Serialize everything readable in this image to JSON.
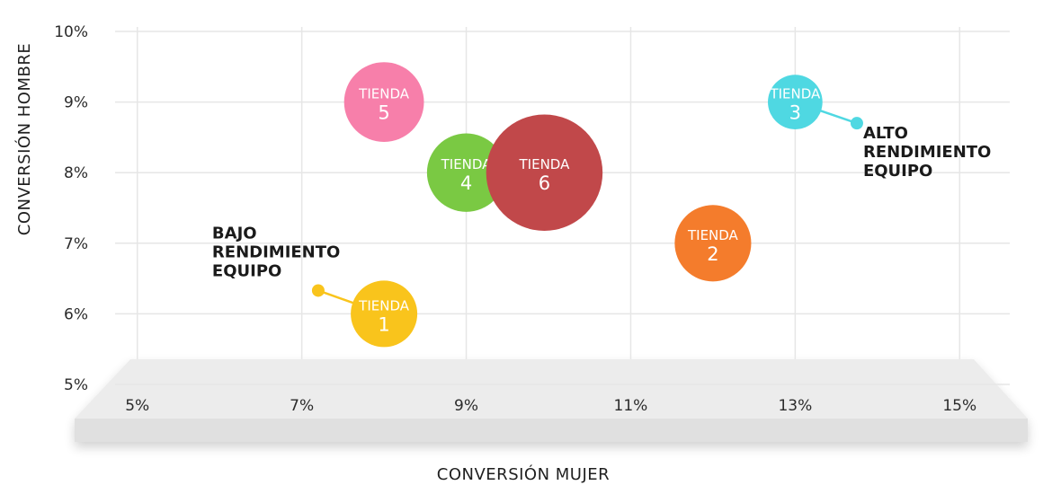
{
  "chart_data": {
    "type": "scatter",
    "xlabel": "CONVERSIÓN MUJER",
    "ylabel": "CONVERSIÓN HOMBRE",
    "xlim": [
      4.5,
      15.5
    ],
    "ylim": [
      5,
      10
    ],
    "x_ticks": [
      "5%",
      "7%",
      "9%",
      "11%",
      "13%",
      "15%"
    ],
    "y_ticks": [
      "5%",
      "6%",
      "7%",
      "8%",
      "9%",
      "10%"
    ],
    "grid": true,
    "points": [
      {
        "word": "TIENDA",
        "num": "1",
        "x": 8.0,
        "y": 6.0,
        "color": "#f9c41c",
        "size": 1.0
      },
      {
        "word": "TIENDA",
        "num": "2",
        "x": 12.0,
        "y": 7.0,
        "color": "#f47c2c",
        "size": 1.15
      },
      {
        "word": "TIENDA",
        "num": "3",
        "x": 13.0,
        "y": 9.0,
        "color": "#4fd8e2",
        "size": 0.82
      },
      {
        "word": "TIENDA",
        "num": "4",
        "x": 9.0,
        "y": 8.0,
        "color": "#7ac943",
        "size": 1.18
      },
      {
        "word": "TIENDA",
        "num": "5",
        "x": 8.0,
        "y": 9.0,
        "color": "#f77faa",
        "size": 1.2
      },
      {
        "word": "TIENDA",
        "num": "6",
        "x": 9.95,
        "y": 8.0,
        "color": "#c1484a",
        "size": 1.75
      }
    ],
    "annotations": [
      {
        "lines": [
          "BAJO",
          "RENDIMIENTO",
          "EQUIPO"
        ],
        "dot_x": 7.2,
        "dot_y": 6.33,
        "target": "1",
        "dot_color": "#f9c41c"
      },
      {
        "lines": [
          "ALTO",
          "RENDIMIENTO",
          "EQUIPO"
        ],
        "dot_x": 13.75,
        "dot_y": 8.7,
        "target": "3",
        "dot_color": "#4fd8e2"
      }
    ]
  }
}
